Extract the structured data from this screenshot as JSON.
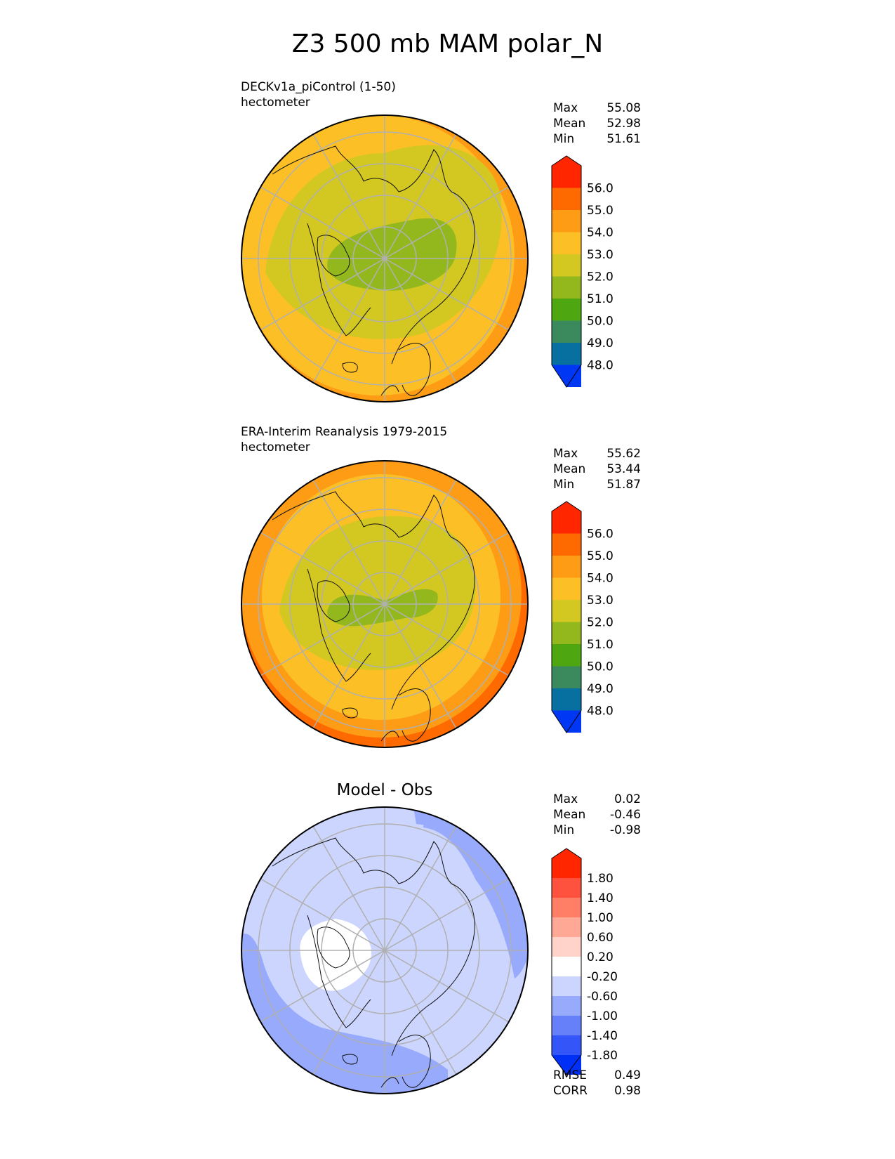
{
  "title": "Z3 500 mb MAM polar_N",
  "panels": [
    {
      "name_line": "DECKv1a_piControl (1-50)",
      "units_line": "hectometer",
      "stats": {
        "max_label": "Max",
        "max": "55.08",
        "mean_label": "Mean",
        "mean": "52.98",
        "min_label": "Min",
        "min": "51.61"
      },
      "levels": [
        "56.0",
        "55.0",
        "54.0",
        "53.0",
        "52.0",
        "51.0",
        "50.0",
        "49.0",
        "48.0"
      ],
      "colors": [
        "#ff2600",
        "#ff6a00",
        "#ff9c16",
        "#fcc026",
        "#d2c821",
        "#93b81e",
        "#4ea710",
        "#3a8a5e",
        "#0770a0",
        "#0037f5"
      ],
      "field": {
        "pole_color": "#93b81e",
        "ring_colors": [
          "#d2c821",
          "#fcc026",
          "#ff9c16"
        ]
      }
    },
    {
      "name_line": "ERA-Interim Reanalysis 1979-2015",
      "units_line": "hectometer",
      "stats": {
        "max_label": "Max",
        "max": "55.62",
        "mean_label": "Mean",
        "mean": "53.44",
        "min_label": "Min",
        "min": "51.87"
      },
      "levels": [
        "56.0",
        "55.0",
        "54.0",
        "53.0",
        "52.0",
        "51.0",
        "50.0",
        "49.0",
        "48.0"
      ],
      "colors": [
        "#ff2600",
        "#ff6a00",
        "#ff9c16",
        "#fcc026",
        "#d2c821",
        "#93b81e",
        "#4ea710",
        "#3a8a5e",
        "#0770a0",
        "#0037f5"
      ],
      "field": {
        "pole_color": "#93b81e",
        "ring_colors": [
          "#d2c821",
          "#fcc026",
          "#ff9c16",
          "#ff6a00"
        ]
      }
    },
    {
      "panel_title": "Model - Obs",
      "stats": {
        "max_label": "Max",
        "max": "0.02",
        "mean_label": "Mean",
        "mean": "-0.46",
        "min_label": "Min",
        "min": "-0.98"
      },
      "levels": [
        "1.80",
        "1.40",
        "1.00",
        "0.60",
        "0.20",
        "-0.20",
        "-0.60",
        "-1.00",
        "-1.40",
        "-1.80"
      ],
      "colors": [
        "#ff2600",
        "#ff523e",
        "#ff7e66",
        "#ffa895",
        "#ffd2ca",
        "#ffffff",
        "#ccd5fd",
        "#98aafb",
        "#6680f9",
        "#3455f7",
        "#0030f5"
      ],
      "field": {
        "base_color": "#ccd5fd",
        "neg_color": "#98aafb",
        "white_color": "#ffffff"
      },
      "extra_stats": {
        "rmse_label": "RMSE",
        "rmse": "0.49",
        "corr_label": "CORR",
        "corr": "0.98"
      }
    }
  ]
}
